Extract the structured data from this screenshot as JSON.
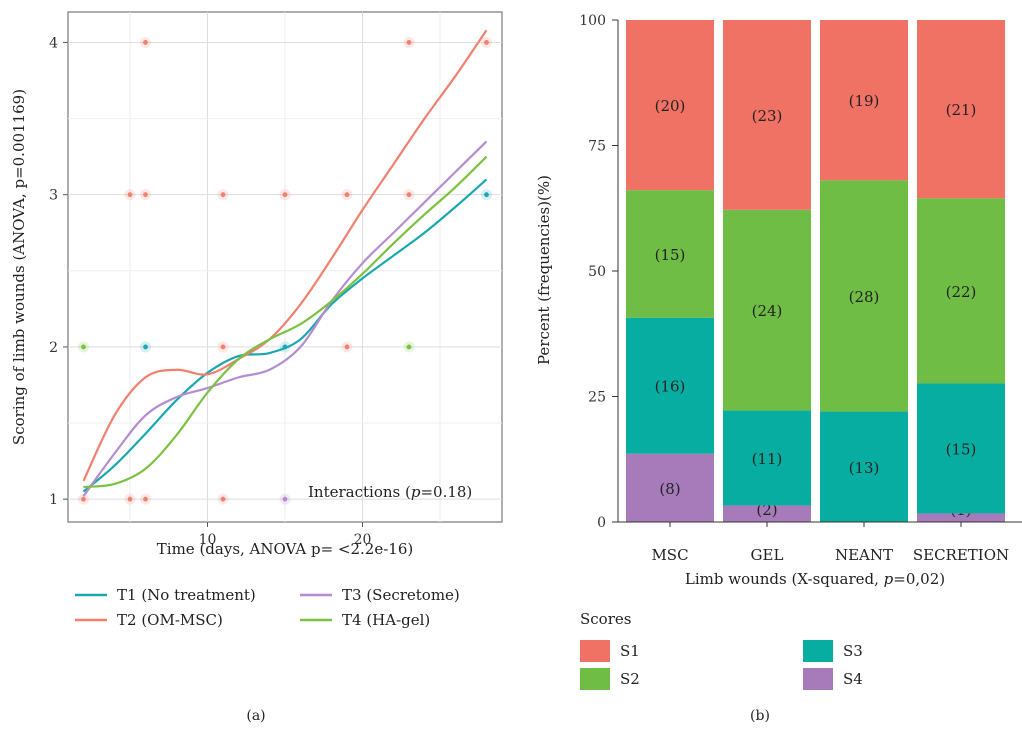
{
  "chart_data": [
    {
      "type": "line",
      "caption": "(a)",
      "xlabel": "Time (days, ANOVA p= <2.2e-16)",
      "ylabel": "Scoring of limb wounds (ANOVA, p=0.001169)",
      "xlim": [
        1,
        29
      ],
      "ylim": [
        0.85,
        4.2
      ],
      "xticks": [
        10,
        20
      ],
      "yticks": [
        1,
        2,
        3,
        4
      ],
      "grid": true,
      "annotation": {
        "prefix": "Interactions (",
        "p": "p",
        "suffix": "=0.18)"
      },
      "legend_position": "bottom",
      "series": [
        {
          "name": "T1 (No treatment)",
          "color": "#1aa7b0",
          "x": [
            2,
            4,
            6,
            8,
            10,
            12,
            14,
            16,
            18,
            20,
            22,
            24,
            26,
            28
          ],
          "y": [
            1.05,
            1.22,
            1.43,
            1.65,
            1.83,
            1.94,
            1.96,
            2.05,
            2.28,
            2.45,
            2.6,
            2.75,
            2.92,
            3.1
          ]
        },
        {
          "name": "T2 (OM-MSC)",
          "color": "#f08070",
          "x": [
            2,
            4,
            6,
            8,
            10,
            12,
            14,
            16,
            18,
            20,
            22,
            24,
            26,
            28
          ],
          "y": [
            1.12,
            1.55,
            1.8,
            1.85,
            1.82,
            1.92,
            2.05,
            2.28,
            2.58,
            2.9,
            3.2,
            3.5,
            3.78,
            4.08
          ]
        },
        {
          "name": "T3 (Secretome)",
          "color": "#b48ccf",
          "x": [
            2,
            4,
            6,
            8,
            10,
            12,
            14,
            16,
            18,
            20,
            22,
            24,
            26,
            28
          ],
          "y": [
            1.02,
            1.3,
            1.55,
            1.67,
            1.73,
            1.8,
            1.85,
            2.0,
            2.3,
            2.55,
            2.75,
            2.95,
            3.15,
            3.35
          ]
        },
        {
          "name": "T4 (HA-gel)",
          "color": "#7cc142",
          "x": [
            2,
            4,
            6,
            8,
            10,
            12,
            14,
            16,
            18,
            20,
            22,
            24,
            26,
            28
          ],
          "y": [
            1.08,
            1.1,
            1.2,
            1.42,
            1.7,
            1.92,
            2.05,
            2.15,
            2.3,
            2.48,
            2.68,
            2.87,
            3.05,
            3.25
          ]
        }
      ],
      "points": [
        {
          "x": 2,
          "y": 1,
          "color": "#f08070"
        },
        {
          "x": 2,
          "y": 2,
          "color": "#7cc142"
        },
        {
          "x": 5,
          "y": 1,
          "color": "#f08070"
        },
        {
          "x": 5,
          "y": 3,
          "color": "#f08070"
        },
        {
          "x": 6,
          "y": 1,
          "color": "#f08070"
        },
        {
          "x": 6,
          "y": 2,
          "color": "#1aa7b0"
        },
        {
          "x": 6,
          "y": 3,
          "color": "#f08070"
        },
        {
          "x": 6,
          "y": 4,
          "color": "#f08070"
        },
        {
          "x": 11,
          "y": 1,
          "color": "#f08070"
        },
        {
          "x": 11,
          "y": 2,
          "color": "#f08070"
        },
        {
          "x": 11,
          "y": 3,
          "color": "#f08070"
        },
        {
          "x": 15,
          "y": 1,
          "color": "#b48ccf"
        },
        {
          "x": 15,
          "y": 2,
          "color": "#1aa7b0"
        },
        {
          "x": 15,
          "y": 3,
          "color": "#f08070"
        },
        {
          "x": 19,
          "y": 2,
          "color": "#f08070"
        },
        {
          "x": 19,
          "y": 3,
          "color": "#f08070"
        },
        {
          "x": 23,
          "y": 2,
          "color": "#7cc142"
        },
        {
          "x": 23,
          "y": 3,
          "color": "#f08070"
        },
        {
          "x": 23,
          "y": 4,
          "color": "#f08070"
        },
        {
          "x": 28,
          "y": 3,
          "color": "#1aa7b0"
        },
        {
          "x": 28,
          "y": 4,
          "color": "#f08070"
        }
      ]
    },
    {
      "type": "bar",
      "stacked": true,
      "caption": "(b)",
      "xlabel": "Limb wounds (X-squared, p=0,02)",
      "xlabel_parts": {
        "prefix": "Limb wounds (X-squared, ",
        "p": "p",
        "suffix": "=0,02)"
      },
      "ylabel": "Percent (frequencies)(%)",
      "ylim": [
        0,
        100
      ],
      "yticks": [
        0,
        25,
        50,
        75,
        100
      ],
      "categories": [
        "MSC",
        "GEL",
        "NEANT",
        "SECRETION"
      ],
      "legend_title": "Scores",
      "legend_position": "bottom",
      "series": [
        {
          "name": "S4",
          "color": "#a77bb9",
          "values": [
            13.6,
            3.3,
            0,
            1.7
          ],
          "labels": [
            "(8)",
            "(2)",
            "",
            "(1)"
          ]
        },
        {
          "name": "S3",
          "color": "#06ada0",
          "values": [
            27.1,
            18.9,
            22.0,
            25.9
          ],
          "labels": [
            "(16)",
            "(11)",
            "(13)",
            "(15)"
          ]
        },
        {
          "name": "S2",
          "color": "#70bd45",
          "values": [
            25.4,
            40.0,
            46.1,
            36.9
          ],
          "labels": [
            "(15)",
            "(24)",
            "(28)",
            "(22)"
          ]
        },
        {
          "name": "S1",
          "color": "#f07265",
          "values": [
            33.9,
            37.8,
            31.9,
            35.5
          ],
          "labels": [
            "(20)",
            "(23)",
            "(19)",
            "(21)"
          ]
        }
      ]
    }
  ]
}
